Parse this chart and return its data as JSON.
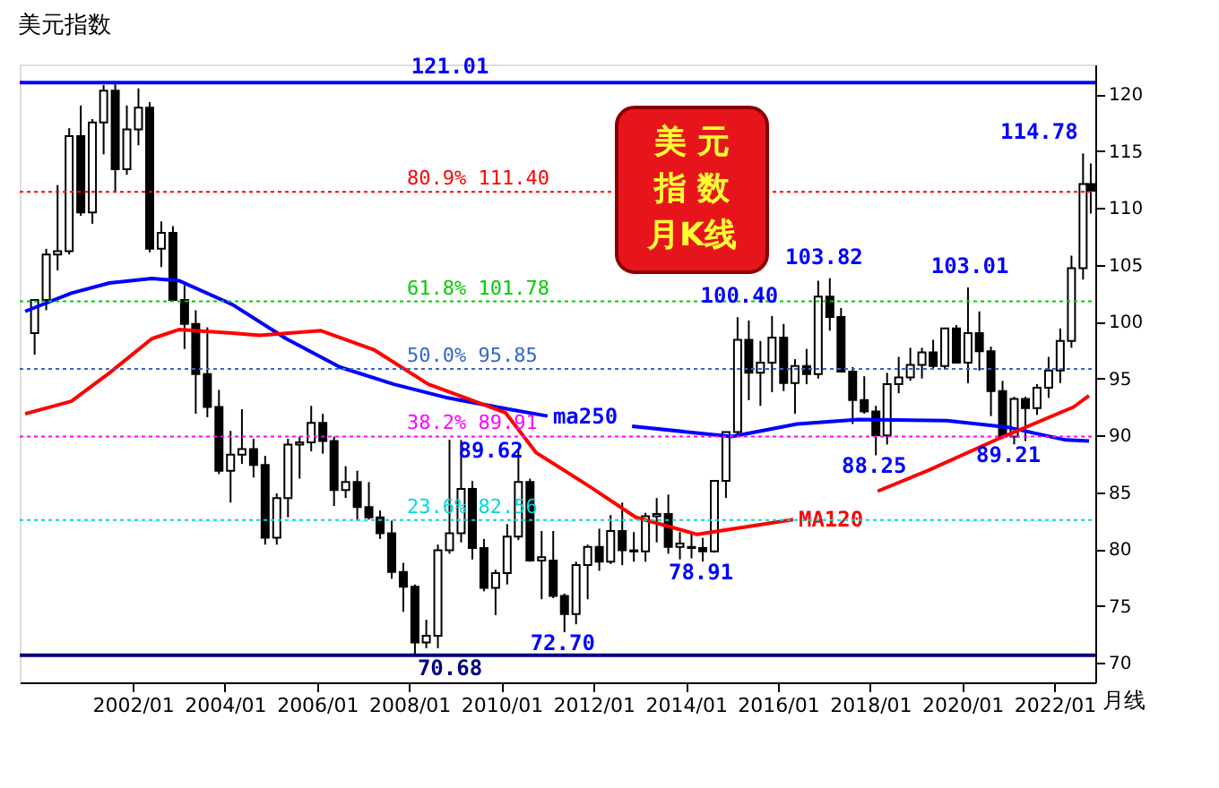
{
  "chart_data": {
    "type": "candlestick",
    "title": "美元指数",
    "color": "#000000",
    "x": [
      "1999-11-15",
      "2000-02-15",
      "2000-05-15",
      "2000-08-15",
      "2000-11-15",
      "2001-02-15",
      "2001-05-15",
      "2001-08-15",
      "2001-11-15",
      "2002-02-15",
      "2002-05-15",
      "2002-08-15",
      "2002-11-15",
      "2003-02-15",
      "2003-05-15",
      "2003-08-15",
      "2003-11-15",
      "2004-02-15",
      "2004-05-15",
      "2004-08-15",
      "2004-11-15",
      "2005-02-15",
      "2005-05-15",
      "2005-08-15",
      "2005-11-15",
      "2006-02-15",
      "2006-05-15",
      "2006-08-15",
      "2006-11-15",
      "2007-02-15",
      "2007-05-15",
      "2007-08-15",
      "2007-11-15",
      "2008-02-15",
      "2008-05-15",
      "2008-08-15",
      "2008-11-15",
      "2009-02-15",
      "2009-05-15",
      "2009-08-15",
      "2009-11-15",
      "2010-02-15",
      "2010-05-15",
      "2010-08-15",
      "2010-11-15",
      "2011-02-15",
      "2011-05-15",
      "2011-08-15",
      "2011-11-15",
      "2012-02-15",
      "2012-05-15",
      "2012-08-15",
      "2012-11-15",
      "2013-02-15",
      "2013-05-15",
      "2013-08-15",
      "2013-11-15",
      "2014-02-15",
      "2014-05-15",
      "2014-08-15",
      "2014-11-15",
      "2015-02-15",
      "2015-05-15",
      "2015-08-15",
      "2015-11-15",
      "2016-02-15",
      "2016-05-15",
      "2016-08-15",
      "2016-11-15",
      "2017-02-15",
      "2017-05-15",
      "2017-08-15",
      "2017-11-15",
      "2018-02-15",
      "2018-05-15",
      "2018-08-15",
      "2018-11-15",
      "2019-02-15",
      "2019-05-15",
      "2019-08-15",
      "2019-11-15",
      "2020-02-15",
      "2020-05-15",
      "2020-08-15",
      "2020-11-15",
      "2021-02-15",
      "2021-05-15",
      "2021-08-15",
      "2021-11-15",
      "2022-02-15",
      "2022-05-15",
      "2022-08-15",
      "2022-10-15"
    ],
    "ohlc": [
      [
        99.0,
        101.9,
        97.1,
        101.9
      ],
      [
        101.9,
        106.4,
        101.0,
        105.9
      ],
      [
        105.9,
        112.0,
        104.5,
        106.2
      ],
      [
        106.2,
        117.0,
        105.9,
        116.3
      ],
      [
        116.3,
        119.0,
        109.3,
        109.6
      ],
      [
        109.6,
        117.8,
        108.6,
        117.5
      ],
      [
        117.5,
        120.8,
        114.7,
        120.3
      ],
      [
        120.3,
        121.01,
        111.4,
        113.4
      ],
      [
        113.4,
        119.0,
        112.9,
        116.9
      ],
      [
        116.9,
        120.5,
        115.5,
        118.8
      ],
      [
        118.8,
        119.3,
        106.1,
        106.4
      ],
      [
        106.4,
        108.8,
        104.8,
        107.8
      ],
      [
        107.8,
        108.4,
        101.8,
        101.9
      ],
      [
        101.9,
        103.2,
        97.6,
        99.8
      ],
      [
        99.8,
        101.0,
        91.9,
        95.4
      ],
      [
        95.4,
        99.5,
        91.6,
        92.5
      ],
      [
        92.5,
        94.0,
        86.6,
        86.9
      ],
      [
        86.9,
        90.4,
        84.1,
        88.3
      ],
      [
        88.3,
        92.3,
        87.5,
        88.8
      ],
      [
        88.8,
        89.7,
        86.3,
        87.4
      ],
      [
        87.4,
        88.2,
        80.4,
        81.0
      ],
      [
        81.0,
        84.9,
        80.4,
        84.5
      ],
      [
        84.5,
        89.7,
        82.8,
        89.2
      ],
      [
        89.2,
        89.9,
        86.2,
        89.4
      ],
      [
        89.4,
        92.6,
        88.6,
        91.1
      ],
      [
        91.1,
        91.9,
        88.4,
        89.5
      ],
      [
        89.5,
        89.9,
        83.8,
        85.2
      ],
      [
        85.2,
        87.3,
        84.5,
        85.9
      ],
      [
        85.9,
        86.9,
        82.5,
        83.7
      ],
      [
        83.7,
        85.9,
        82.6,
        82.8
      ],
      [
        82.8,
        83.4,
        80.9,
        81.4
      ],
      [
        81.4,
        82.5,
        77.4,
        78.0
      ],
      [
        78.0,
        78.8,
        74.5,
        76.7
      ],
      [
        76.7,
        76.9,
        70.68,
        71.8
      ],
      [
        71.8,
        73.8,
        71.3,
        72.4
      ],
      [
        72.4,
        80.4,
        71.3,
        79.9
      ],
      [
        79.9,
        89.62,
        79.6,
        81.4
      ],
      [
        81.4,
        89.6,
        80.6,
        85.3
      ],
      [
        85.3,
        86.0,
        79.1,
        80.1
      ],
      [
        80.1,
        80.9,
        76.3,
        76.6
      ],
      [
        76.6,
        78.2,
        74.2,
        77.9
      ],
      [
        77.9,
        82.2,
        76.9,
        81.1
      ],
      [
        81.1,
        88.7,
        80.8,
        85.9
      ],
      [
        85.9,
        86.2,
        78.9,
        79.0
      ],
      [
        79.0,
        81.6,
        75.6,
        79.3
      ],
      [
        79.0,
        81.6,
        75.7,
        75.9
      ],
      [
        75.9,
        76.1,
        72.7,
        74.3
      ],
      [
        74.3,
        78.9,
        73.4,
        78.6
      ],
      [
        78.6,
        80.4,
        75.6,
        80.2
      ],
      [
        80.2,
        81.8,
        78.1,
        78.9
      ],
      [
        78.9,
        83.0,
        78.7,
        81.6
      ],
      [
        81.6,
        84.1,
        78.6,
        79.9
      ],
      [
        79.9,
        81.5,
        78.9,
        79.8
      ],
      [
        79.8,
        83.2,
        78.9,
        82.9
      ],
      [
        82.9,
        84.5,
        80.6,
        83.1
      ],
      [
        83.1,
        84.8,
        79.6,
        80.2
      ],
      [
        80.2,
        81.5,
        79.1,
        80.5
      ],
      [
        80.2,
        81.5,
        79.2,
        80.1
      ],
      [
        80.1,
        81.0,
        78.91,
        79.8
      ],
      [
        79.8,
        86.0,
        79.7,
        86.0
      ],
      [
        86.0,
        90.3,
        84.5,
        90.3
      ],
      [
        90.3,
        100.4,
        90.1,
        98.4
      ],
      [
        98.4,
        100.1,
        93.1,
        95.5
      ],
      [
        95.5,
        98.3,
        92.6,
        96.4
      ],
      [
        96.4,
        100.5,
        93.8,
        98.6
      ],
      [
        98.6,
        99.8,
        93.9,
        94.6
      ],
      [
        94.6,
        96.7,
        91.9,
        96.1
      ],
      [
        96.1,
        97.6,
        94.5,
        95.4
      ],
      [
        95.4,
        103.6,
        95.0,
        102.2
      ],
      [
        102.2,
        103.82,
        99.2,
        100.4
      ],
      [
        100.4,
        101.2,
        95.6,
        95.6
      ],
      [
        95.6,
        96.0,
        91.0,
        93.1
      ],
      [
        93.1,
        95.2,
        91.9,
        92.1
      ],
      [
        92.1,
        92.6,
        88.25,
        90.0
      ],
      [
        90.0,
        95.5,
        89.2,
        94.5
      ],
      [
        94.5,
        96.9,
        93.7,
        95.1
      ],
      [
        95.1,
        97.7,
        94.8,
        96.2
      ],
      [
        96.2,
        97.7,
        95.0,
        97.3
      ],
      [
        97.3,
        98.4,
        95.8,
        96.1
      ],
      [
        96.1,
        99.4,
        95.8,
        99.4
      ],
      [
        99.4,
        99.7,
        96.4,
        96.4
      ],
      [
        96.4,
        103.01,
        94.6,
        99.0
      ],
      [
        99.0,
        100.9,
        95.7,
        97.4
      ],
      [
        97.4,
        97.8,
        91.7,
        93.9
      ],
      [
        93.9,
        94.8,
        89.7,
        89.9
      ],
      [
        89.9,
        93.4,
        89.21,
        93.2
      ],
      [
        93.2,
        93.4,
        89.5,
        92.4
      ],
      [
        92.4,
        94.5,
        91.8,
        94.2
      ],
      [
        94.2,
        96.9,
        93.3,
        95.7
      ],
      [
        95.7,
        99.4,
        94.6,
        98.3
      ],
      [
        98.3,
        105.8,
        97.7,
        104.7
      ],
      [
        104.7,
        114.78,
        103.7,
        112.1
      ],
      [
        112.1,
        113.9,
        109.5,
        111.5
      ]
    ],
    "series": [
      {
        "name": "ma250",
        "type": "line",
        "color": "#0000ff",
        "x": [
          "1999-09",
          "2000-09",
          "2001-07",
          "2002-06",
          "2003-01",
          "2004-03",
          "2005-05",
          "2006-07",
          "2007-09",
          "2008-11",
          "2010-03",
          "2011-01",
          "2012-01",
          "2012-11",
          "2015-01",
          "2016-06",
          "2017-10",
          "2019-09",
          "2021-01",
          "2022-04",
          "2022-10"
        ],
        "values": [
          100.9,
          102.5,
          103.4,
          103.8,
          103.6,
          101.5,
          98.5,
          96.0,
          94.5,
          93.3,
          92.3,
          91.7,
          null,
          90.8,
          89.9,
          91.0,
          91.4,
          91.3,
          90.7,
          89.6,
          89.5
        ]
      },
      {
        "name": "MA120",
        "type": "line",
        "color": "#ff0000",
        "x": [
          "1999-09",
          "2000-09",
          "2001-07",
          "2002-06",
          "2003-01",
          "2004-03",
          "2004-10",
          "2006-02",
          "2007-04",
          "2008-06",
          "2010-02",
          "2010-10",
          "2011-12",
          "2012-12",
          "2014-04",
          "2016-05",
          "2017-03",
          "2018-03",
          "2019-04",
          "2020-11",
          "2022-06",
          "2022-10"
        ],
        "values": [
          91.9,
          93.0,
          95.5,
          98.5,
          99.3,
          99.0,
          98.8,
          99.2,
          97.5,
          94.5,
          92.0,
          88.5,
          85.5,
          82.8,
          81.3,
          82.6,
          null,
          85.1,
          86.9,
          89.8,
          92.5,
          93.5
        ]
      }
    ],
    "xlim": [
      "1999-07-20",
      "2022-11-20"
    ],
    "xticks": [
      {
        "value": "2002-01",
        "label": "2002/01"
      },
      {
        "value": "2004-01",
        "label": "2004/01"
      },
      {
        "value": "2006-01",
        "label": "2006/01"
      },
      {
        "value": "2008-01",
        "label": "2008/01"
      },
      {
        "value": "2010-01",
        "label": "2010/01"
      },
      {
        "value": "2012-01",
        "label": "2012/01"
      },
      {
        "value": "2014-01",
        "label": "2014/01"
      },
      {
        "value": "2016-01",
        "label": "2016/01"
      },
      {
        "value": "2018-01",
        "label": "2018/01"
      },
      {
        "value": "2020-01",
        "label": "2020/01"
      },
      {
        "value": "2022-01",
        "label": "2022/01"
      }
    ],
    "ylim": [
      68.3,
      122.6
    ],
    "yticks": [
      70,
      75,
      80,
      85,
      90,
      95,
      100,
      105,
      110,
      115,
      120
    ],
    "ref_lines": [
      {
        "axis": "y",
        "value": 121.01,
        "label": "121.01",
        "color": "#0000ff",
        "line_style": "solid"
      },
      {
        "axis": "y",
        "value": 111.4,
        "label": "80.9%  111.40",
        "color": "#ff0000",
        "line_style": "dotted"
      },
      {
        "axis": "y",
        "value": 101.78,
        "label": "61.8%  101.78",
        "color": "#00cc00",
        "line_style": "dotted"
      },
      {
        "axis": "y",
        "value": 95.85,
        "label": "50.0%  95.85",
        "color": "#3366cc",
        "line_style": "dotted"
      },
      {
        "axis": "y",
        "value": 89.91,
        "label": "38.2%  89.91",
        "color": "#ff00ff",
        "line_style": "dotted"
      },
      {
        "axis": "y",
        "value": 82.56,
        "label": "23.6%  82.56",
        "color": "#00d8d8",
        "line_style": "dotted"
      },
      {
        "axis": "y",
        "value": 70.68,
        "label": "70.68",
        "color": "#000080",
        "line_style": "solid"
      }
    ],
    "annotations": [
      "美 元",
      "指 数",
      "月K线",
      "月线",
      {
        "text": "100.40",
        "x": "2015-03",
        "y": 100.4
      },
      {
        "text": "103.82",
        "x": "2017-01",
        "y": 103.82
      },
      {
        "text": "103.01",
        "x": "2020-03",
        "y": 103.01
      },
      {
        "text": "114.78",
        "x": "2022-09",
        "y": 114.78
      },
      {
        "text": "89.62",
        "x": "2008-11",
        "y": 89.62
      },
      {
        "text": "72.70",
        "x": "2011-05",
        "y": 72.7
      },
      {
        "text": "78.91",
        "x": "2014-05",
        "y": 78.91
      },
      {
        "text": "88.25",
        "x": "2018-02",
        "y": 88.25
      },
      {
        "text": "89.21",
        "x": "2021-01",
        "y": 89.21
      }
    ]
  }
}
